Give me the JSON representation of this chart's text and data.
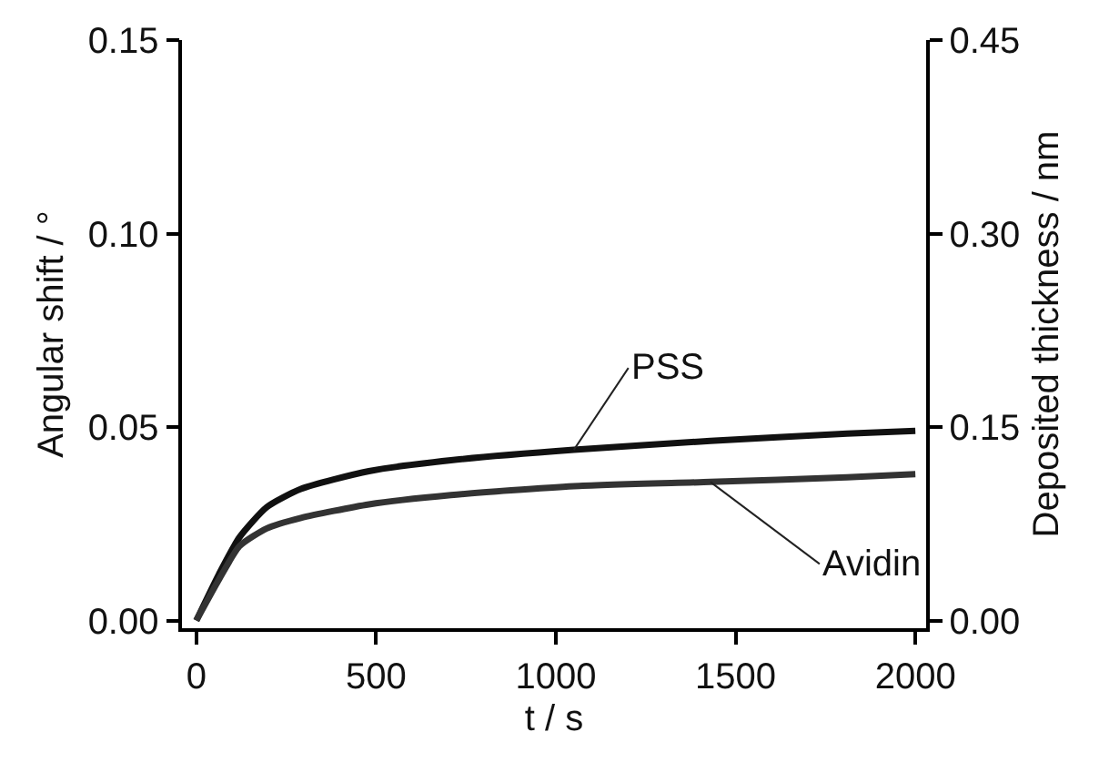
{
  "chart_data": {
    "type": "line",
    "xlabel": "t / s",
    "ylabel": "Angular shift / °",
    "y2label": "Deposited thickness / nm",
    "x": [
      0,
      63,
      120,
      196,
      291,
      480,
      708,
      1050,
      1430,
      1810,
      2000
    ],
    "series": [
      {
        "name": "PSS",
        "color": "#111111",
        "values": [
          0,
          0.012,
          0.0215,
          0.0293,
          0.034,
          0.0386,
          0.0414,
          0.0441,
          0.0464,
          0.0483,
          0.049
        ]
      },
      {
        "name": "Avidin",
        "color": "#333333",
        "values": [
          0,
          0.0106,
          0.0192,
          0.0238,
          0.0265,
          0.03,
          0.0324,
          0.0347,
          0.0358,
          0.037,
          0.0378
        ]
      }
    ],
    "xlim": [
      -40,
      2030
    ],
    "xticks": [
      0,
      500,
      1000,
      1500,
      2000
    ],
    "ylim": [
      -0.002,
      0.15
    ],
    "yticks": [
      {
        "value": 0,
        "label": "0.00"
      },
      {
        "value": 0.05,
        "label": "0.05"
      },
      {
        "value": 0.1,
        "label": "0.10"
      },
      {
        "value": 0.15,
        "label": "0.15"
      }
    ],
    "y2lim": [
      -0.006,
      0.45
    ],
    "y2ticks": [
      {
        "value": 0,
        "label": "0.00"
      },
      {
        "value": 0.15,
        "label": "0.15"
      },
      {
        "value": 0.3,
        "label": "0.30"
      },
      {
        "value": 0.45,
        "label": "0.45"
      }
    ],
    "grid": false,
    "legend": false
  }
}
